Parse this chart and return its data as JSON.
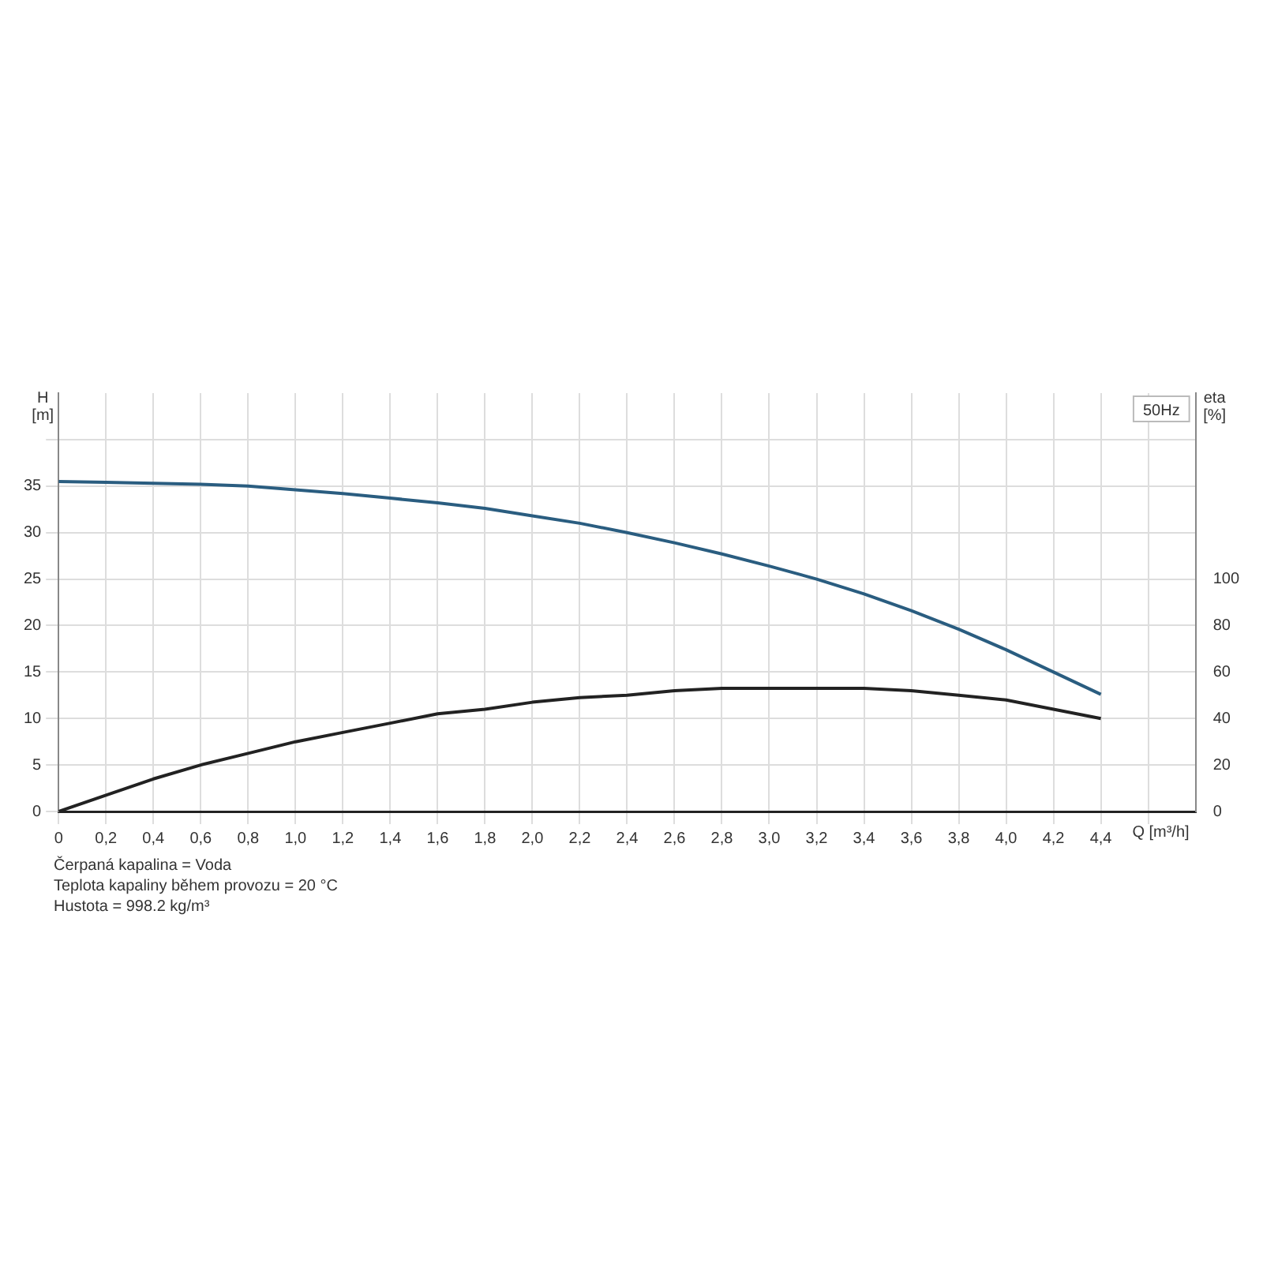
{
  "chart_data": {
    "type": "line",
    "xlabel": "Q [m³/h]",
    "ylabel": "H [m]",
    "y2label": "eta [%]",
    "x": [
      0,
      0.2,
      0.4,
      0.6,
      0.8,
      1.0,
      1.2,
      1.4,
      1.6,
      1.8,
      2.0,
      2.2,
      2.4,
      2.6,
      2.8,
      3.0,
      3.2,
      3.4,
      3.6,
      3.8,
      4.0,
      4.2,
      4.4
    ],
    "series": [
      {
        "color": "#2a5d80",
        "values": [
          35.5,
          35.4,
          35.3,
          35.2,
          35.0,
          34.6,
          34.2,
          33.7,
          33.2,
          32.6,
          31.8,
          31.0,
          30.0,
          28.9,
          27.7,
          26.4,
          25.0,
          23.4,
          21.6,
          19.6,
          17.4,
          15.0,
          12.6
        ]
      },
      {
        "color": "#222222",
        "axis": "y2",
        "values": [
          0,
          7,
          14,
          20,
          25,
          30,
          34,
          38,
          42,
          44,
          47,
          49,
          50,
          52,
          53,
          53,
          53,
          53,
          52,
          50,
          48,
          44,
          40
        ]
      }
    ],
    "xlim": [
      0,
      4.8
    ],
    "xticks": [
      0,
      {
        "value": 0.2,
        "label": "0,2"
      },
      {
        "value": 0.4,
        "label": "0,4"
      },
      {
        "value": 0.6,
        "label": "0,6"
      },
      {
        "value": 0.8,
        "label": "0,8"
      },
      {
        "value": 1.0,
        "label": "1,0"
      },
      {
        "value": 1.2,
        "label": "1,2"
      },
      {
        "value": 1.4,
        "label": "1,4"
      },
      {
        "value": 1.6,
        "label": "1,6"
      },
      {
        "value": 1.8,
        "label": "1,8"
      },
      {
        "value": 2.0,
        "label": "2,0"
      },
      {
        "value": 2.2,
        "label": "2,2"
      },
      {
        "value": 2.4,
        "label": "2,4"
      },
      {
        "value": 2.6,
        "label": "2,6"
      },
      {
        "value": 2.8,
        "label": "2,8"
      },
      {
        "value": 3.0,
        "label": "3,0"
      },
      {
        "value": 3.2,
        "label": "3,2"
      },
      {
        "value": 3.4,
        "label": "3,4"
      },
      {
        "value": 3.6,
        "label": "3,6"
      },
      {
        "value": 3.8,
        "label": "3,8"
      },
      {
        "value": 4.0,
        "label": "4,0"
      },
      {
        "value": 4.2,
        "label": "4,2"
      },
      {
        "value": 4.4,
        "label": "4,4"
      },
      {
        "value": 4.6,
        "label": null
      }
    ],
    "ylim": [
      0,
      45
    ],
    "yticks": [
      0,
      5,
      10,
      15,
      20,
      25,
      30,
      35,
      {
        "value": 40,
        "label": null
      }
    ],
    "y2lim": [
      0,
      180
    ],
    "y2ticks": [
      0,
      20,
      40,
      60,
      80,
      100
    ],
    "grid": true,
    "legend": false,
    "marker": "none",
    "line_style": "solid",
    "annotations": [
      "50Hz",
      "Čerpaná kapalina = Voda",
      "Teplota kapaliny během provozu = 20 °C",
      "Hustota = 998.2 kg/m³"
    ]
  }
}
